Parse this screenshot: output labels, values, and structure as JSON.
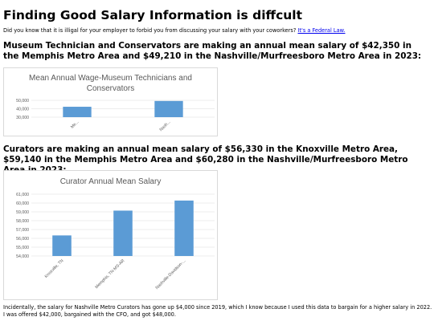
{
  "page": {
    "title": "Finding Good Salary Information is diffcult",
    "intro_text": "Did you know that it is illigal for your employer to forbid you from discussing your salary with your coworkers?",
    "intro_link": "It's a Federal Law.",
    "heading1": "Museum Technician and Conservators are making an annual mean salary of $42,350 in the Memphis Metro Area and $49,210 in the Nashville/Murfreesboro Metro Area in 2023:",
    "heading2": "Curators are making an annual mean salary of $56,330 in the Knoxville Metro Area, $59,140 in the Memphis Metro Area and $60,280 in the Nashville/Murfreesboro Metro Area in 2023:",
    "outro_text": "Incidentally, the salary for Nashville Metro Curators has gone up $4,000 since 2019, which I know because I used this data to bargain for a higher salary in 2022. I was offered $42,000, bargained with the CFO, and got $48,000."
  },
  "chart_data": [
    {
      "type": "bar",
      "title": "Mean Annual Wage-Museum Technicians and Conservators",
      "categories": [
        "Me...",
        "Nash..."
      ],
      "values": [
        42350,
        49210
      ],
      "ylim": [
        30000,
        50000
      ],
      "yticks": [
        "30,000",
        "40,000",
        "50,000"
      ],
      "grid": true,
      "bar_color": "#5b9bd5"
    },
    {
      "type": "bar",
      "title": "Curator Annual Mean Salary",
      "categories": [
        "Knoxville, TN",
        "Memphis, TN-MS-AR",
        "Nashville-Davidson-..."
      ],
      "values": [
        56330,
        59140,
        60280
      ],
      "ylim": [
        54000,
        61000
      ],
      "yticks": [
        "54,000",
        "55,000",
        "56,000",
        "57,000",
        "58,000",
        "59,000",
        "60,000",
        "61,000"
      ],
      "grid": true,
      "bar_color": "#5b9bd5"
    }
  ]
}
